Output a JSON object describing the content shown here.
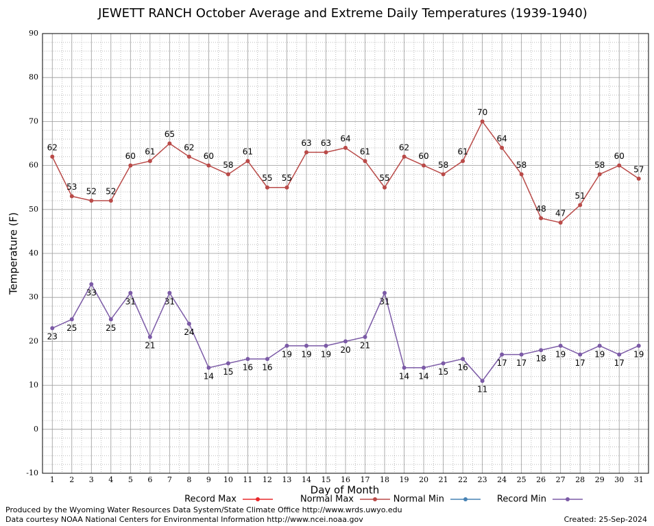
{
  "chart_data": {
    "type": "line",
    "title": "JEWETT RANCH October Average and Extreme Daily Temperatures (1939-1940)",
    "xlabel": "Day of Month",
    "ylabel": "Temperature (F)",
    "categories": [
      "1",
      "2",
      "3",
      "4",
      "5",
      "6",
      "7",
      "8",
      "9",
      "10",
      "11",
      "12",
      "13",
      "14",
      "15",
      "16",
      "17",
      "18",
      "19",
      "20",
      "21",
      "22",
      "23",
      "24",
      "25",
      "26",
      "27",
      "28",
      "29",
      "30",
      "31"
    ],
    "series": [
      {
        "name": "Record Max",
        "color": "#e8282a",
        "values": [
          null,
          null,
          null,
          null,
          null,
          null,
          null,
          null,
          null,
          null,
          null,
          null,
          null,
          null,
          null,
          null,
          null,
          null,
          null,
          null,
          null,
          null,
          null,
          null,
          null,
          null,
          null,
          null,
          null,
          null,
          null
        ]
      },
      {
        "name": "Normal Max",
        "color": "#b94a48",
        "label_side": "above",
        "values": [
          62,
          53,
          52,
          52,
          60,
          61,
          65,
          62,
          60,
          58,
          61,
          55,
          55,
          63,
          63,
          64,
          61,
          55,
          62,
          60,
          58,
          61,
          70,
          64,
          58,
          48,
          47,
          51,
          58,
          60,
          57
        ]
      },
      {
        "name": "Normal Min",
        "color": "#4682b4",
        "values": [
          null,
          null,
          null,
          null,
          null,
          null,
          null,
          null,
          null,
          null,
          null,
          null,
          null,
          null,
          null,
          null,
          null,
          null,
          null,
          null,
          null,
          null,
          null,
          null,
          null,
          null,
          null,
          null,
          null,
          null,
          null
        ]
      },
      {
        "name": "Record Min",
        "color": "#7b5aa6",
        "label_side": "below",
        "values": [
          23,
          25,
          33,
          25,
          31,
          21,
          31,
          24,
          14,
          15,
          16,
          16,
          19,
          19,
          19,
          20,
          21,
          31,
          14,
          14,
          15,
          16,
          11,
          17,
          17,
          18,
          19,
          17,
          19,
          17,
          19
        ]
      }
    ],
    "ylim": [
      -10,
      90
    ],
    "yticks": [
      -10,
      0,
      10,
      20,
      30,
      40,
      50,
      60,
      70,
      80,
      90
    ],
    "grid": true,
    "legend": "bottom",
    "footer": [
      "Produced by the Wyoming Water Resources Data System/State Climate Office http://www.wrds.uwyo.edu",
      "Data courtesy NOAA National Centers for Environmental Information http://www.ncei.noaa.gov"
    ],
    "created": "Created:  25-Sep-2024"
  }
}
